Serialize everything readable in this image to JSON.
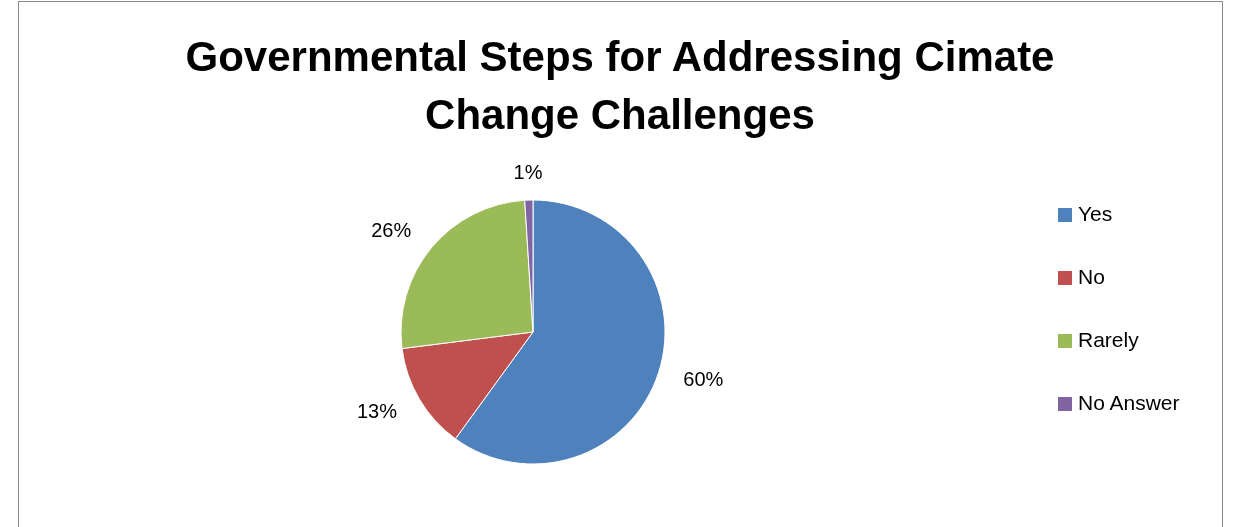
{
  "chart_data": {
    "type": "pie",
    "title": "Governmental Steps for Addressing Cimate Change Challenges",
    "categories": [
      "Yes",
      "No",
      "Rarely",
      "No Answer"
    ],
    "values": [
      60,
      13,
      26,
      1
    ],
    "colors": [
      "#4f81bd",
      "#c0504d",
      "#9bbb59",
      "#8064a2"
    ],
    "value_labels": [
      "60%",
      "13%",
      "26%",
      "1%"
    ],
    "legend": "right"
  }
}
